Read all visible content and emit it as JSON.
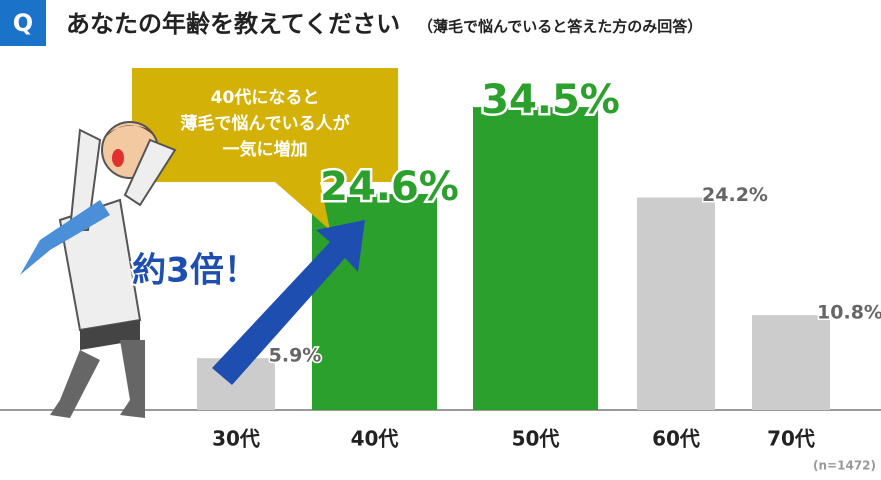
{
  "chart_data": {
    "type": "bar",
    "badge": "Q",
    "title": "あなたの年齢を教えてください",
    "subtitle": "（薄毛で悩んでいると答えた方のみ回答）",
    "categories": [
      "30代",
      "40代",
      "50代",
      "60代",
      "70代"
    ],
    "values": [
      5.9,
      24.6,
      34.5,
      24.2,
      10.8
    ],
    "value_labels": [
      "5.9%",
      "24.6%",
      "34.5%",
      "24.2%",
      "10.8%"
    ],
    "colors": [
      "#cccccc",
      "#2ca02c",
      "#2ca02c",
      "#cccccc",
      "#cccccc"
    ],
    "callout": [
      "40代になると",
      "薄毛で悩んでいる人が",
      "一気に増加"
    ],
    "annotation": "約3倍！",
    "note": "(n=1472)"
  }
}
